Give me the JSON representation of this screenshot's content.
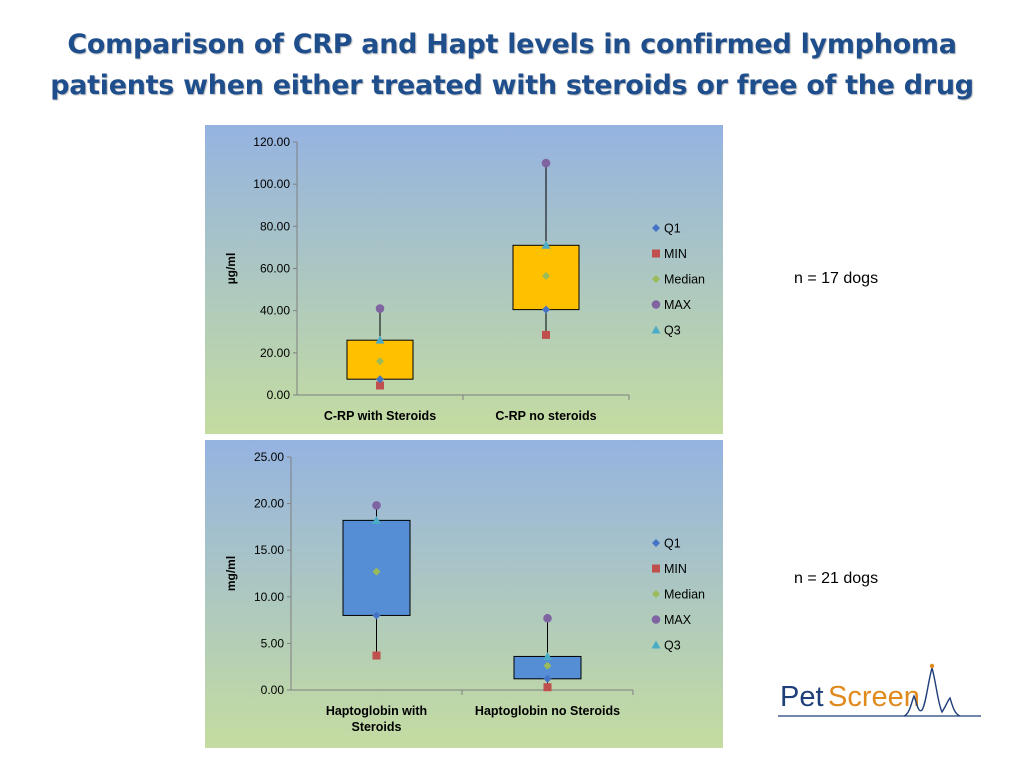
{
  "title_line1": "Comparison of CRP and Hapt levels in confirmed lymphoma",
  "title_line2": "patients when either treated with steroids or free of the drug",
  "notes": {
    "chart1": "n = 17 dogs",
    "chart2": "n = 21 dogs"
  },
  "logo": {
    "text_pet": "Pet",
    "text_screen": "Screen"
  },
  "colors": {
    "title": "#1f4e8c",
    "bg_top": "#95b3e1",
    "bg_bottom": "#c4dca0"
  },
  "chart_data": [
    {
      "type": "box",
      "ylabel": "µg/ml",
      "ylim": [
        0,
        120
      ],
      "yticks": [
        "0.00",
        "20.00",
        "40.00",
        "60.00",
        "80.00",
        "100.00",
        "120.00"
      ],
      "categories": [
        [
          "C-RP with Steroids"
        ],
        [
          "C-RP no steroids"
        ]
      ],
      "box_color": "#ffc000",
      "series": [
        {
          "name": "Q1",
          "values": [
            7.5,
            40.5
          ]
        },
        {
          "name": "MIN",
          "values": [
            4.5,
            28.5
          ]
        },
        {
          "name": "Median",
          "values": [
            16,
            56.5
          ]
        },
        {
          "name": "MAX",
          "values": [
            41,
            110
          ]
        },
        {
          "name": "Q3",
          "values": [
            26,
            71
          ]
        }
      ],
      "legend": "right"
    },
    {
      "type": "box",
      "ylabel": "mg/ml",
      "ylim": [
        0,
        25
      ],
      "yticks": [
        "0.00",
        "5.00",
        "10.00",
        "15.00",
        "20.00",
        "25.00"
      ],
      "categories": [
        [
          "Haptoglobin with",
          "Steroids"
        ],
        [
          "Haptoglobin no Steroids"
        ]
      ],
      "box_color": "#558ed5",
      "series": [
        {
          "name": "Q1",
          "values": [
            8,
            1.2
          ]
        },
        {
          "name": "MIN",
          "values": [
            3.7,
            0.3
          ]
        },
        {
          "name": "Median",
          "values": [
            12.7,
            2.6
          ]
        },
        {
          "name": "MAX",
          "values": [
            19.8,
            7.7
          ]
        },
        {
          "name": "Q3",
          "values": [
            18.2,
            3.6
          ]
        }
      ],
      "legend": "right"
    }
  ]
}
